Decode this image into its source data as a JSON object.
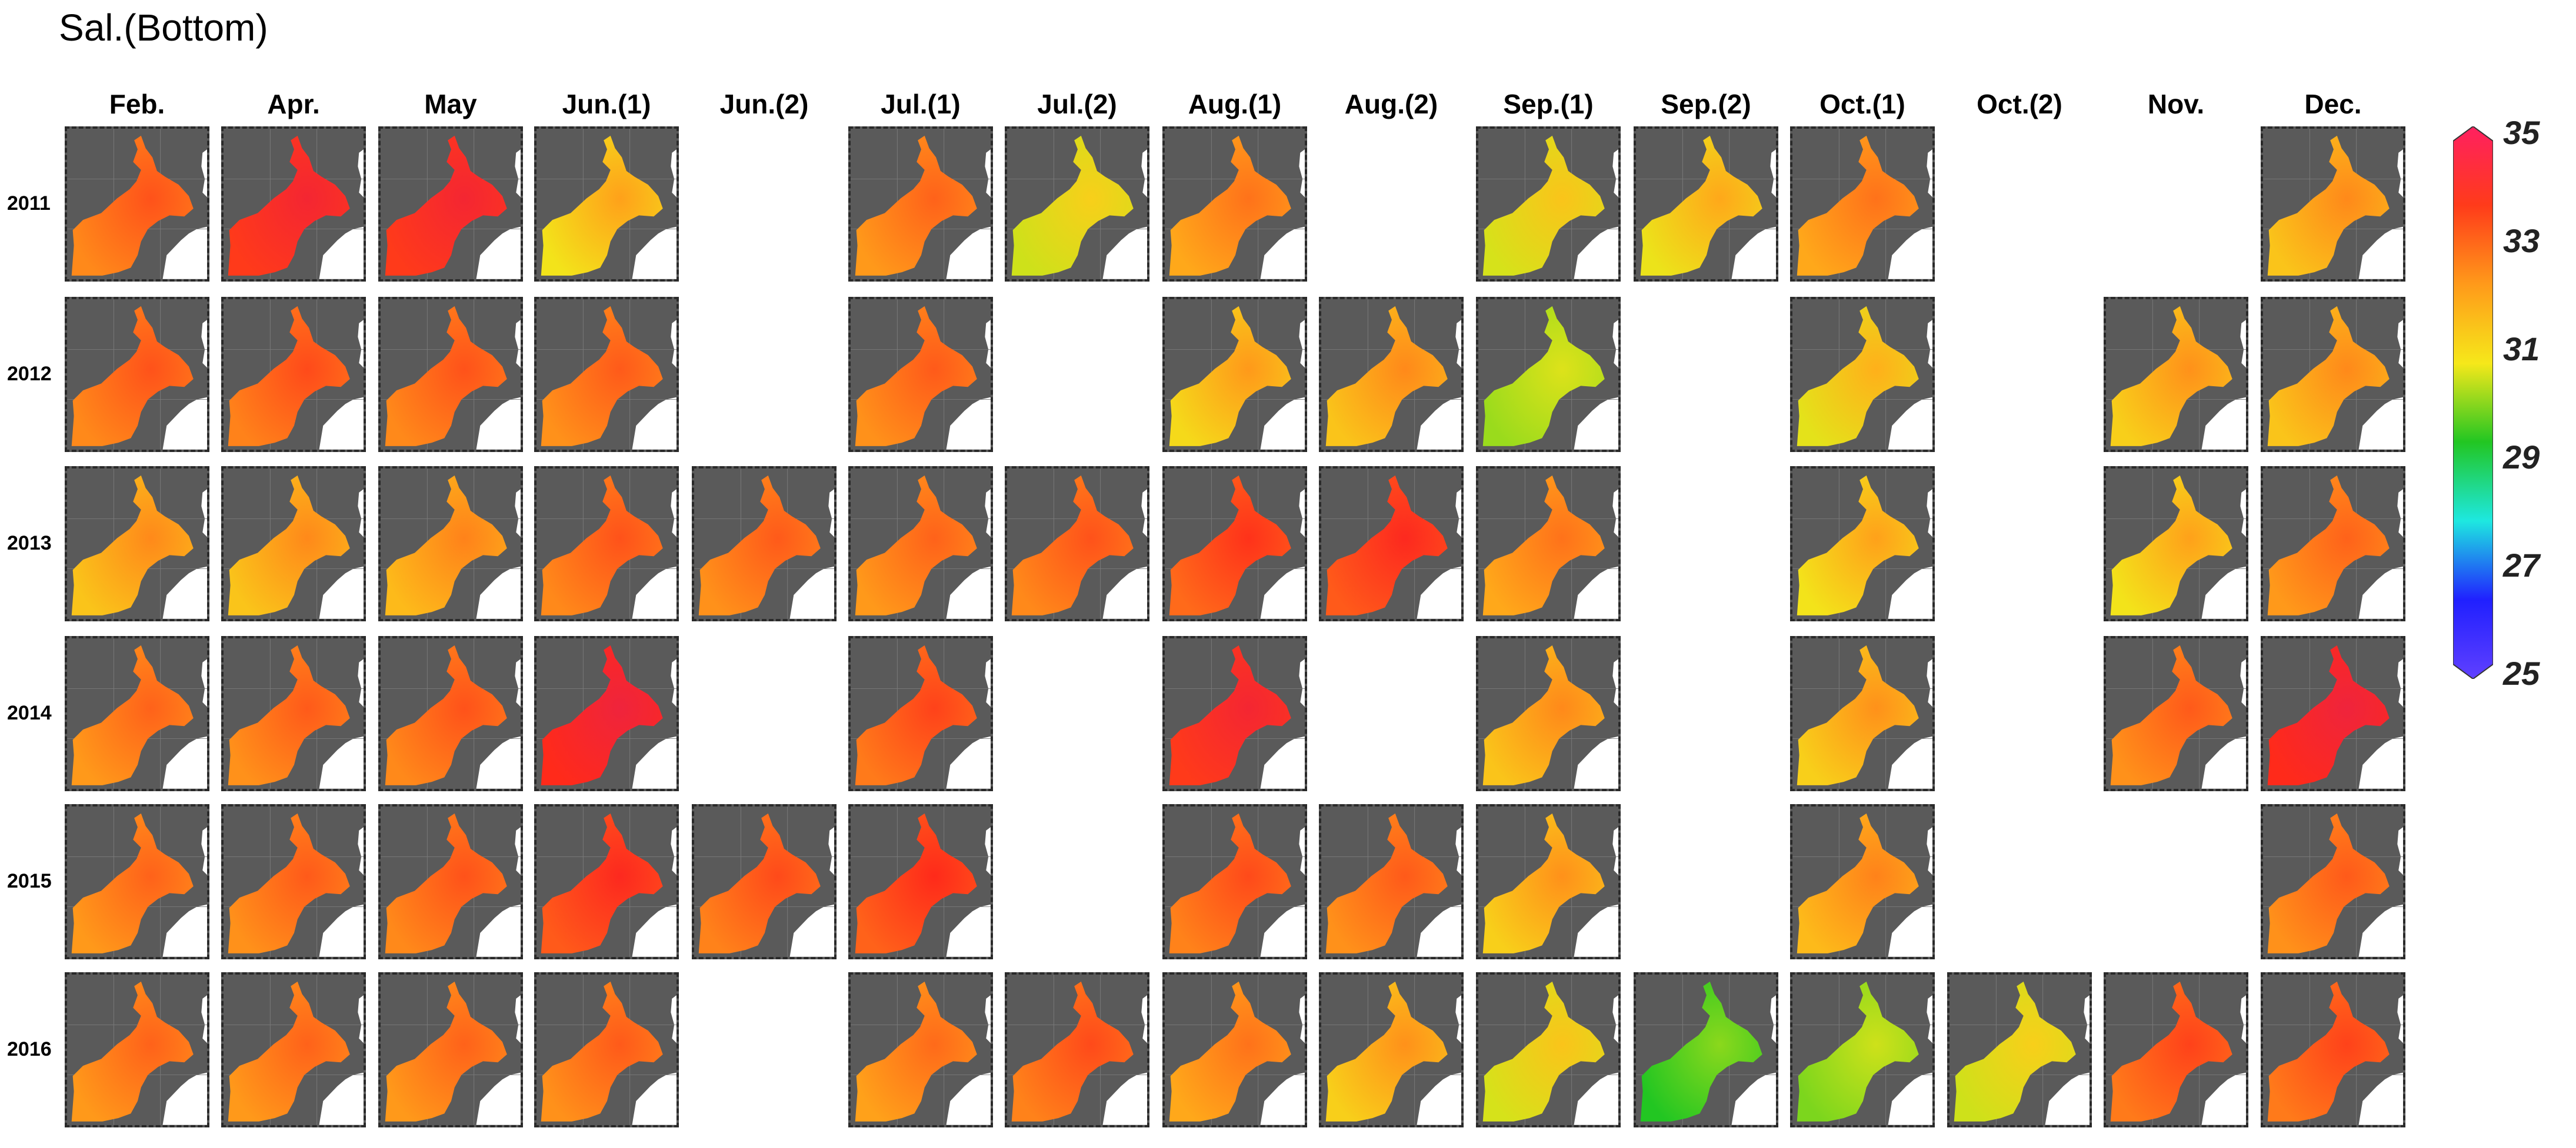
{
  "title": "Sal.(Bottom)",
  "chart_data": {
    "type": "heatmap",
    "title": "Sal.(Bottom)",
    "columns": [
      "Feb.",
      "Apr.",
      "May",
      "Jun.(1)",
      "Jun.(2)",
      "Jul.(1)",
      "Jul.(2)",
      "Aug.(1)",
      "Aug.(2)",
      "Sep.(1)",
      "Sep.(2)",
      "Oct.(1)",
      "Oct.(2)",
      "Nov.",
      "Dec."
    ],
    "rows": [
      "2011",
      "2012",
      "2013",
      "2014",
      "2015",
      "2016"
    ],
    "colorbar": {
      "min": 25,
      "max": 35,
      "ticks": [
        "35",
        "33",
        "31",
        "29",
        "27",
        "25"
      ],
      "colors": [
        "#ff2060",
        "#ff3b1a",
        "#ff9a1a",
        "#f6e81a",
        "#22c622",
        "#1ee8e0",
        "#2020ff",
        "#6040ff"
      ]
    },
    "values": [
      [
        33.0,
        34.0,
        34.0,
        32.0,
        null,
        32.8,
        31.5,
        32.6,
        null,
        31.6,
        31.9,
        32.6,
        null,
        null,
        32.3
      ],
      [
        33.0,
        33.1,
        33.0,
        32.9,
        null,
        32.9,
        null,
        32.1,
        32.3,
        31.0,
        null,
        31.8,
        null,
        32.2,
        32.3
      ],
      [
        32.3,
        32.3,
        32.4,
        33.0,
        32.9,
        32.8,
        33.0,
        33.4,
        33.6,
        32.6,
        null,
        32.0,
        null,
        32.0,
        32.8
      ],
      [
        32.8,
        32.9,
        33.0,
        34.2,
        null,
        33.2,
        null,
        34.0,
        null,
        32.3,
        null,
        32.2,
        null,
        32.9,
        34.2
      ],
      [
        32.8,
        32.9,
        33.0,
        33.6,
        33.1,
        33.5,
        null,
        33.1,
        32.9,
        32.2,
        null,
        32.4,
        null,
        null,
        32.9
      ],
      [
        32.8,
        32.8,
        32.8,
        32.9,
        null,
        32.7,
        33.1,
        32.6,
        32.2,
        31.6,
        30.2,
        30.8,
        31.5,
        33.2,
        33.2
      ]
    ]
  }
}
